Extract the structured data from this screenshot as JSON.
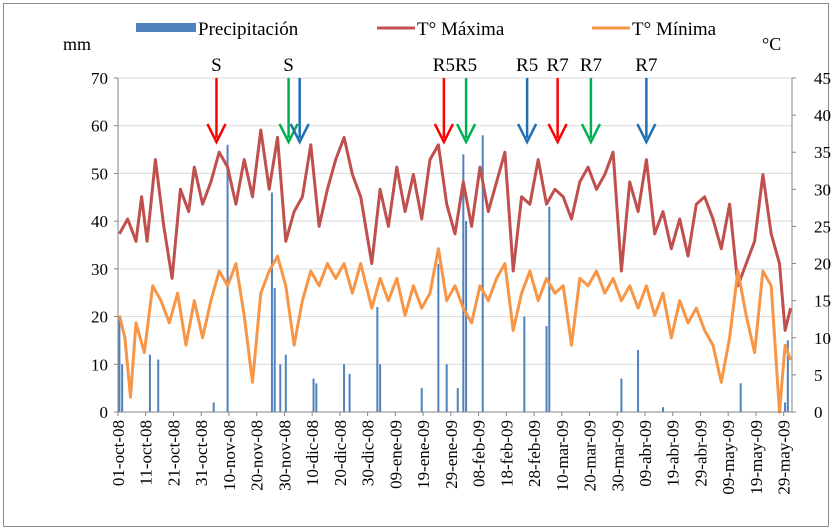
{
  "chart_data": {
    "type": "bar+line",
    "title": "",
    "y_left": {
      "label": "mm",
      "lim": [
        0,
        70
      ],
      "ticks": [
        0,
        10,
        20,
        30,
        40,
        50,
        60,
        70
      ]
    },
    "y_right": {
      "label": "°C",
      "lim": [
        0,
        45
      ],
      "ticks": [
        0,
        5,
        10,
        15,
        20,
        25,
        30,
        35,
        40,
        45
      ]
    },
    "x_start": "2008-10-01",
    "x_end": "2009-05-31",
    "x_tick_labels": [
      "01-oct-08",
      "11-oct-08",
      "21-oct-08",
      "31-oct-08",
      "10-nov-08",
      "20-nov-08",
      "30-nov-08",
      "10-dic-08",
      "20-dic-08",
      "30-dic-08",
      "09-ene-09",
      "19-ene-09",
      "29-ene-09",
      "08-feb-09",
      "18-feb-09",
      "28-feb-09",
      "10-mar-09",
      "20-mar-09",
      "30-mar-09",
      "09-abr-09",
      "19-abr-09",
      "29-abr-09",
      "09-may-09",
      "19-may-09",
      "29-may-09"
    ],
    "gridlines": "horizontal",
    "legend": {
      "position": "top",
      "entries": [
        {
          "label": "Precipitación",
          "type": "bar",
          "color": "#4f81bd"
        },
        {
          "label": "T° Máxima",
          "type": "line",
          "color": "#c0504d"
        },
        {
          "label": "T° Mínima",
          "type": "line",
          "color": "#f79646"
        }
      ]
    },
    "series": [
      {
        "name": "Precipitación",
        "type": "bar",
        "axis": "left",
        "color": "#4f81bd",
        "points": [
          [
            "2008-10-01",
            20
          ],
          [
            "2008-10-02",
            10
          ],
          [
            "2008-10-12",
            12
          ],
          [
            "2008-10-15",
            11
          ],
          [
            "2008-11-04",
            2
          ],
          [
            "2008-11-09",
            56
          ],
          [
            "2008-11-25",
            46
          ],
          [
            "2008-11-26",
            26
          ],
          [
            "2008-11-28",
            10
          ],
          [
            "2008-11-30",
            12
          ],
          [
            "2008-12-10",
            7
          ],
          [
            "2008-12-11",
            6
          ],
          [
            "2008-12-21",
            10
          ],
          [
            "2008-12-23",
            8
          ],
          [
            "2009-01-02",
            22
          ],
          [
            "2009-01-03",
            10
          ],
          [
            "2009-01-18",
            5
          ],
          [
            "2009-01-24",
            31
          ],
          [
            "2009-01-27",
            10
          ],
          [
            "2009-01-31",
            5
          ],
          [
            "2009-02-02",
            54
          ],
          [
            "2009-02-03",
            40
          ],
          [
            "2009-02-09",
            58
          ],
          [
            "2009-02-24",
            20
          ],
          [
            "2009-03-04",
            18
          ],
          [
            "2009-03-05",
            43
          ],
          [
            "2009-03-31",
            7
          ],
          [
            "2009-04-06",
            13
          ],
          [
            "2009-04-15",
            1
          ],
          [
            "2009-05-13",
            6
          ],
          [
            "2009-05-29",
            2
          ],
          [
            "2009-05-30",
            15
          ]
        ]
      },
      {
        "name": "T° Máxima",
        "type": "line",
        "axis": "right",
        "color": "#c0504d",
        "points": [
          [
            "2008-10-01",
            24
          ],
          [
            "2008-10-04",
            26
          ],
          [
            "2008-10-07",
            23
          ],
          [
            "2008-10-09",
            29
          ],
          [
            "2008-10-11",
            23
          ],
          [
            "2008-10-14",
            34
          ],
          [
            "2008-10-17",
            25
          ],
          [
            "2008-10-20",
            18
          ],
          [
            "2008-10-23",
            30
          ],
          [
            "2008-10-26",
            27
          ],
          [
            "2008-10-28",
            33
          ],
          [
            "2008-10-31",
            28
          ],
          [
            "2008-11-03",
            31
          ],
          [
            "2008-11-06",
            35
          ],
          [
            "2008-11-09",
            33
          ],
          [
            "2008-11-12",
            28
          ],
          [
            "2008-11-15",
            34
          ],
          [
            "2008-11-18",
            29
          ],
          [
            "2008-11-21",
            38
          ],
          [
            "2008-11-24",
            30
          ],
          [
            "2008-11-27",
            37
          ],
          [
            "2008-11-30",
            23
          ],
          [
            "2008-12-03",
            27
          ],
          [
            "2008-12-06",
            29
          ],
          [
            "2008-12-09",
            36
          ],
          [
            "2008-12-12",
            25
          ],
          [
            "2008-12-15",
            30
          ],
          [
            "2008-12-18",
            34
          ],
          [
            "2008-12-21",
            37
          ],
          [
            "2008-12-24",
            32
          ],
          [
            "2008-12-27",
            29
          ],
          [
            "2008-12-31",
            20
          ],
          [
            "2009-01-03",
            30
          ],
          [
            "2009-01-06",
            25
          ],
          [
            "2009-01-09",
            33
          ],
          [
            "2009-01-12",
            27
          ],
          [
            "2009-01-15",
            32
          ],
          [
            "2009-01-18",
            26
          ],
          [
            "2009-01-21",
            34
          ],
          [
            "2009-01-24",
            36
          ],
          [
            "2009-01-27",
            28
          ],
          [
            "2009-01-30",
            24
          ],
          [
            "2009-02-02",
            31
          ],
          [
            "2009-02-05",
            25
          ],
          [
            "2009-02-08",
            33
          ],
          [
            "2009-02-11",
            27
          ],
          [
            "2009-02-14",
            31
          ],
          [
            "2009-02-17",
            35
          ],
          [
            "2009-02-20",
            19
          ],
          [
            "2009-02-23",
            29
          ],
          [
            "2009-02-26",
            28
          ],
          [
            "2009-03-01",
            34
          ],
          [
            "2009-03-04",
            28
          ],
          [
            "2009-03-07",
            30
          ],
          [
            "2009-03-10",
            29
          ],
          [
            "2009-03-13",
            26
          ],
          [
            "2009-03-16",
            31
          ],
          [
            "2009-03-19",
            33
          ],
          [
            "2009-03-22",
            30
          ],
          [
            "2009-03-25",
            32
          ],
          [
            "2009-03-28",
            35
          ],
          [
            "2009-03-31",
            19
          ],
          [
            "2009-04-03",
            31
          ],
          [
            "2009-04-06",
            27
          ],
          [
            "2009-04-09",
            34
          ],
          [
            "2009-04-12",
            24
          ],
          [
            "2009-04-15",
            27
          ],
          [
            "2009-04-18",
            22
          ],
          [
            "2009-04-21",
            26
          ],
          [
            "2009-04-24",
            21
          ],
          [
            "2009-04-27",
            28
          ],
          [
            "2009-04-30",
            29
          ],
          [
            "2009-05-03",
            26
          ],
          [
            "2009-05-06",
            22
          ],
          [
            "2009-05-09",
            28
          ],
          [
            "2009-05-12",
            17
          ],
          [
            "2009-05-15",
            20
          ],
          [
            "2009-05-18",
            23
          ],
          [
            "2009-05-21",
            32
          ],
          [
            "2009-05-24",
            24
          ],
          [
            "2009-05-27",
            20
          ],
          [
            "2009-05-29",
            11
          ],
          [
            "2009-05-31",
            14
          ]
        ]
      },
      {
        "name": "T° Mínima",
        "type": "line",
        "axis": "right",
        "color": "#f79646",
        "points": [
          [
            "2008-10-01",
            13
          ],
          [
            "2008-10-03",
            10
          ],
          [
            "2008-10-05",
            2
          ],
          [
            "2008-10-07",
            12
          ],
          [
            "2008-10-10",
            8
          ],
          [
            "2008-10-13",
            17
          ],
          [
            "2008-10-16",
            15
          ],
          [
            "2008-10-19",
            12
          ],
          [
            "2008-10-22",
            16
          ],
          [
            "2008-10-25",
            9
          ],
          [
            "2008-10-28",
            15
          ],
          [
            "2008-10-31",
            10
          ],
          [
            "2008-11-03",
            15
          ],
          [
            "2008-11-06",
            19
          ],
          [
            "2008-11-09",
            17
          ],
          [
            "2008-11-12",
            20
          ],
          [
            "2008-11-15",
            13
          ],
          [
            "2008-11-18",
            4
          ],
          [
            "2008-11-21",
            16
          ],
          [
            "2008-11-24",
            19
          ],
          [
            "2008-11-27",
            21
          ],
          [
            "2008-11-30",
            17
          ],
          [
            "2008-12-03",
            9
          ],
          [
            "2008-12-06",
            15
          ],
          [
            "2008-12-09",
            19
          ],
          [
            "2008-12-12",
            17
          ],
          [
            "2008-12-15",
            20
          ],
          [
            "2008-12-18",
            18
          ],
          [
            "2008-12-21",
            20
          ],
          [
            "2008-12-24",
            16
          ],
          [
            "2008-12-27",
            20
          ],
          [
            "2008-12-31",
            14
          ],
          [
            "2009-01-03",
            18
          ],
          [
            "2009-01-06",
            15
          ],
          [
            "2009-01-09",
            18
          ],
          [
            "2009-01-12",
            13
          ],
          [
            "2009-01-15",
            17
          ],
          [
            "2009-01-18",
            14
          ],
          [
            "2009-01-21",
            16
          ],
          [
            "2009-01-24",
            22
          ],
          [
            "2009-01-27",
            15
          ],
          [
            "2009-01-30",
            17
          ],
          [
            "2009-02-02",
            14
          ],
          [
            "2009-02-05",
            12
          ],
          [
            "2009-02-08",
            17
          ],
          [
            "2009-02-11",
            15
          ],
          [
            "2009-02-14",
            18
          ],
          [
            "2009-02-17",
            20
          ],
          [
            "2009-02-20",
            11
          ],
          [
            "2009-02-23",
            16
          ],
          [
            "2009-02-26",
            19
          ],
          [
            "2009-03-01",
            15
          ],
          [
            "2009-03-04",
            18
          ],
          [
            "2009-03-07",
            16
          ],
          [
            "2009-03-10",
            17
          ],
          [
            "2009-03-13",
            9
          ],
          [
            "2009-03-16",
            18
          ],
          [
            "2009-03-19",
            17
          ],
          [
            "2009-03-22",
            19
          ],
          [
            "2009-03-25",
            16
          ],
          [
            "2009-03-28",
            18
          ],
          [
            "2009-03-31",
            15
          ],
          [
            "2009-04-03",
            17
          ],
          [
            "2009-04-06",
            14
          ],
          [
            "2009-04-09",
            17
          ],
          [
            "2009-04-12",
            13
          ],
          [
            "2009-04-15",
            16
          ],
          [
            "2009-04-18",
            10
          ],
          [
            "2009-04-21",
            15
          ],
          [
            "2009-04-24",
            12
          ],
          [
            "2009-04-27",
            14
          ],
          [
            "2009-04-30",
            11
          ],
          [
            "2009-05-03",
            9
          ],
          [
            "2009-05-06",
            4
          ],
          [
            "2009-05-09",
            10
          ],
          [
            "2009-05-12",
            19
          ],
          [
            "2009-05-15",
            13
          ],
          [
            "2009-05-18",
            8
          ],
          [
            "2009-05-21",
            19
          ],
          [
            "2009-05-24",
            17
          ],
          [
            "2009-05-27",
            0
          ],
          [
            "2009-05-29",
            9
          ],
          [
            "2009-05-31",
            7
          ]
        ]
      }
    ],
    "annotations": [
      {
        "label": "S",
        "date": "2008-11-05",
        "arrow_color": "#ff0000"
      },
      {
        "label": "S",
        "date": "2008-12-01",
        "arrow_color": "#00b050"
      },
      {
        "label": "",
        "date": "2008-12-05",
        "arrow_color": "#1f6fb5"
      },
      {
        "label": "R5",
        "date": "2009-01-26",
        "arrow_color": "#ff0000"
      },
      {
        "label": "R5",
        "date": "2009-02-03",
        "arrow_color": "#00b050"
      },
      {
        "label": "R5",
        "date": "2009-02-25",
        "arrow_color": "#1f6fb5"
      },
      {
        "label": "R7",
        "date": "2009-03-08",
        "arrow_color": "#ff0000"
      },
      {
        "label": "R7",
        "date": "2009-03-20",
        "arrow_color": "#00b050"
      },
      {
        "label": "R7",
        "date": "2009-04-09",
        "arrow_color": "#1f6fb5"
      }
    ]
  }
}
